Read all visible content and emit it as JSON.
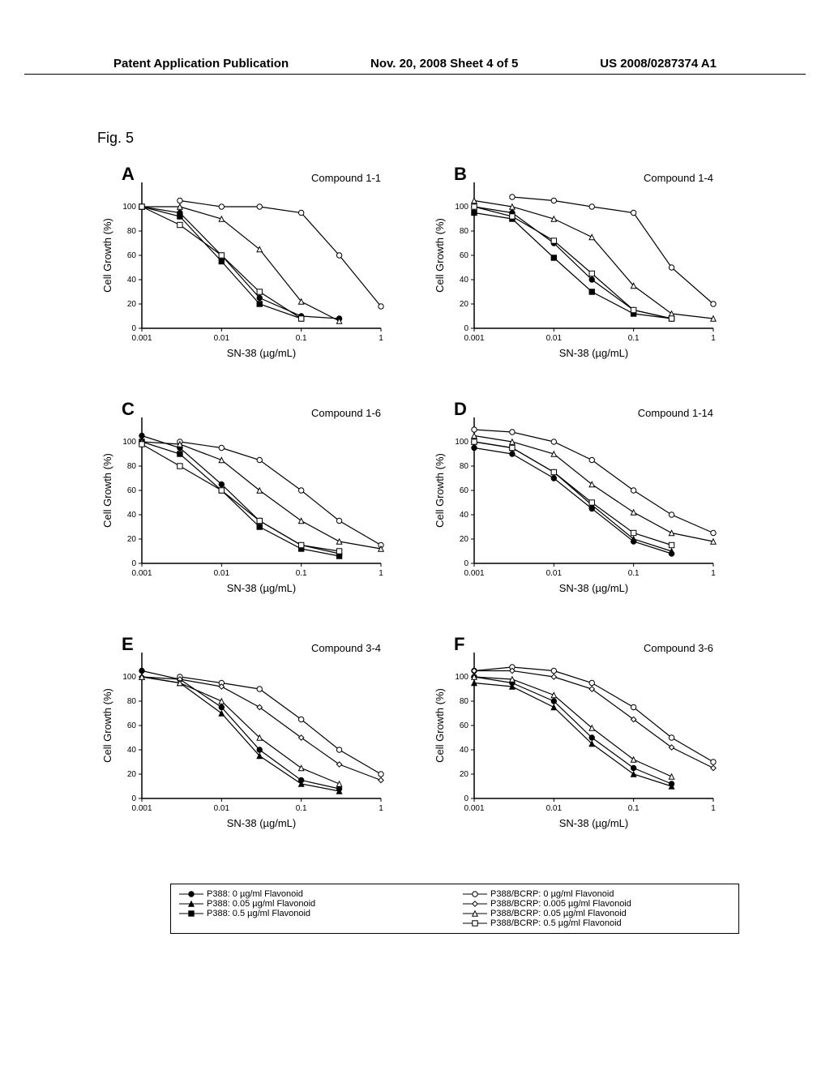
{
  "header": {
    "left": "Patent Application Publication",
    "center": "Nov. 20, 2008  Sheet 4 of 5",
    "right": "US 2008/0287374 A1"
  },
  "figure_label": "Fig. 5",
  "axis": {
    "xlabel": "SN-38 (µg/mL)",
    "ylabel": "Cell Growth (%)",
    "xticks": [
      "0.001",
      "0.01",
      "0.1",
      "1"
    ],
    "xtick_vals": [
      0.001,
      0.01,
      0.1,
      1
    ],
    "yticks": [
      0,
      20,
      40,
      60,
      80,
      100
    ],
    "ylim": [
      0,
      120
    ],
    "label_fontsize": 13,
    "tick_fontsize": 10,
    "background_color": "#ffffff",
    "axis_color": "#000000",
    "line_width": 1.2
  },
  "series_style": {
    "p388_0": {
      "marker": "circle",
      "filled": true,
      "label": "P388: 0 µg/ml Flavonoid"
    },
    "p388_005": {
      "marker": "triangle",
      "filled": true,
      "label": "P388: 0.05 µg/ml Flavonoid"
    },
    "p388_05": {
      "marker": "square",
      "filled": true,
      "label": "P388: 0.5 µg/ml Flavonoid"
    },
    "bcrp_0": {
      "marker": "circle",
      "filled": false,
      "label": "P388/BCRP: 0 µg/ml Flavonoid"
    },
    "bcrp_0005": {
      "marker": "diamond",
      "filled": false,
      "label": "P388/BCRP: 0.005 µg/ml Flavonoid"
    },
    "bcrp_005": {
      "marker": "triangle",
      "filled": false,
      "label": "P388/BCRP: 0.05 µg/ml Flavonoid"
    },
    "bcrp_05": {
      "marker": "square",
      "filled": false,
      "label": "P388/BCRP: 0.5 µg/ml Flavonoid"
    }
  },
  "panels": [
    {
      "letter": "A",
      "title": "Compound 1-1",
      "series": {
        "p388_0": {
          "x": [
            0.001,
            0.003,
            0.01,
            0.03,
            0.1,
            0.3
          ],
          "y": [
            100,
            95,
            60,
            25,
            10,
            8
          ]
        },
        "p388_05": {
          "x": [
            0.001,
            0.003,
            0.01,
            0.03,
            0.1
          ],
          "y": [
            100,
            92,
            55,
            20,
            8
          ]
        },
        "bcrp_0": {
          "x": [
            0.003,
            0.01,
            0.03,
            0.1,
            0.3,
            1
          ],
          "y": [
            105,
            100,
            100,
            95,
            60,
            18
          ]
        },
        "bcrp_005": {
          "x": [
            0.001,
            0.003,
            0.01,
            0.03,
            0.1,
            0.3
          ],
          "y": [
            100,
            100,
            90,
            65,
            22,
            6
          ]
        },
        "bcrp_05": {
          "x": [
            0.001,
            0.003,
            0.01,
            0.03,
            0.1
          ],
          "y": [
            100,
            85,
            60,
            30,
            8
          ]
        }
      }
    },
    {
      "letter": "B",
      "title": "Compound 1-4",
      "series": {
        "p388_0": {
          "x": [
            0.001,
            0.003,
            0.01,
            0.03,
            0.1,
            0.3
          ],
          "y": [
            100,
            95,
            70,
            40,
            15,
            8
          ]
        },
        "p388_05": {
          "x": [
            0.001,
            0.003,
            0.01,
            0.03,
            0.1,
            0.3
          ],
          "y": [
            95,
            90,
            58,
            30,
            12,
            8
          ]
        },
        "bcrp_0": {
          "x": [
            0.003,
            0.01,
            0.03,
            0.1,
            0.3,
            1
          ],
          "y": [
            108,
            105,
            100,
            95,
            50,
            20
          ]
        },
        "bcrp_005": {
          "x": [
            0.001,
            0.003,
            0.01,
            0.03,
            0.1,
            0.3,
            1
          ],
          "y": [
            105,
            100,
            90,
            75,
            35,
            12,
            8
          ]
        },
        "bcrp_05": {
          "x": [
            0.001,
            0.003,
            0.01,
            0.03,
            0.1,
            0.3
          ],
          "y": [
            100,
            92,
            72,
            45,
            15,
            8
          ]
        }
      }
    },
    {
      "letter": "C",
      "title": "Compound 1-6",
      "series": {
        "p388_0": {
          "x": [
            0.001,
            0.003,
            0.01,
            0.03,
            0.1,
            0.3
          ],
          "y": [
            105,
            95,
            65,
            35,
            15,
            8
          ]
        },
        "p388_05": {
          "x": [
            0.001,
            0.003,
            0.01,
            0.03,
            0.1,
            0.3
          ],
          "y": [
            100,
            90,
            60,
            30,
            12,
            6
          ]
        },
        "bcrp_0": {
          "x": [
            0.003,
            0.01,
            0.03,
            0.1,
            0.3,
            1
          ],
          "y": [
            100,
            95,
            85,
            60,
            35,
            15
          ]
        },
        "bcrp_005": {
          "x": [
            0.001,
            0.003,
            0.01,
            0.03,
            0.1,
            0.3,
            1
          ],
          "y": [
            100,
            98,
            85,
            60,
            35,
            18,
            12
          ]
        },
        "bcrp_05": {
          "x": [
            0.001,
            0.003,
            0.01,
            0.03,
            0.1,
            0.3
          ],
          "y": [
            98,
            80,
            60,
            35,
            15,
            10
          ]
        }
      }
    },
    {
      "letter": "D",
      "title": "Compound 1-14",
      "series": {
        "p388_0": {
          "x": [
            0.001,
            0.003,
            0.01,
            0.03,
            0.1,
            0.3
          ],
          "y": [
            95,
            90,
            70,
            45,
            18,
            8
          ]
        },
        "p388_005": {
          "x": [
            0.001,
            0.003,
            0.01,
            0.03,
            0.1,
            0.3
          ],
          "y": [
            100,
            95,
            75,
            48,
            20,
            10
          ]
        },
        "bcrp_0": {
          "x": [
            0.001,
            0.003,
            0.01,
            0.03,
            0.1,
            0.3,
            1
          ],
          "y": [
            110,
            108,
            100,
            85,
            60,
            40,
            25
          ]
        },
        "bcrp_005": {
          "x": [
            0.001,
            0.003,
            0.01,
            0.03,
            0.1,
            0.3,
            1
          ],
          "y": [
            105,
            100,
            90,
            65,
            42,
            25,
            18
          ]
        },
        "bcrp_05": {
          "x": [
            0.001,
            0.003,
            0.01,
            0.03,
            0.1,
            0.3
          ],
          "y": [
            100,
            95,
            75,
            50,
            25,
            15
          ]
        }
      }
    },
    {
      "letter": "E",
      "title": "Compound 3-4",
      "series": {
        "p388_0": {
          "x": [
            0.001,
            0.003,
            0.01,
            0.03,
            0.1,
            0.3
          ],
          "y": [
            105,
            98,
            75,
            40,
            15,
            8
          ]
        },
        "p388_005": {
          "x": [
            0.001,
            0.003,
            0.01,
            0.03,
            0.1,
            0.3
          ],
          "y": [
            100,
            95,
            70,
            35,
            12,
            6
          ]
        },
        "bcrp_0": {
          "x": [
            0.003,
            0.01,
            0.03,
            0.1,
            0.3,
            1
          ],
          "y": [
            100,
            95,
            90,
            65,
            40,
            20
          ]
        },
        "bcrp_0005": {
          "x": [
            0.001,
            0.003,
            0.01,
            0.03,
            0.1,
            0.3,
            1
          ],
          "y": [
            100,
            98,
            92,
            75,
            50,
            28,
            15
          ]
        },
        "bcrp_005": {
          "x": [
            0.001,
            0.003,
            0.01,
            0.03,
            0.1,
            0.3
          ],
          "y": [
            100,
            95,
            80,
            50,
            25,
            12
          ]
        }
      }
    },
    {
      "letter": "F",
      "title": "Compound 3-6",
      "series": {
        "p388_0": {
          "x": [
            0.001,
            0.003,
            0.01,
            0.03,
            0.1,
            0.3
          ],
          "y": [
            100,
            95,
            80,
            50,
            25,
            12
          ]
        },
        "p388_005": {
          "x": [
            0.001,
            0.003,
            0.01,
            0.03,
            0.1,
            0.3
          ],
          "y": [
            95,
            92,
            75,
            45,
            20,
            10
          ]
        },
        "bcrp_0": {
          "x": [
            0.001,
            0.003,
            0.01,
            0.03,
            0.1,
            0.3,
            1
          ],
          "y": [
            105,
            108,
            105,
            95,
            75,
            50,
            30
          ]
        },
        "bcrp_0005": {
          "x": [
            0.001,
            0.003,
            0.01,
            0.03,
            0.1,
            0.3,
            1
          ],
          "y": [
            105,
            105,
            100,
            90,
            65,
            42,
            25
          ]
        },
        "bcrp_005": {
          "x": [
            0.001,
            0.003,
            0.01,
            0.03,
            0.1,
            0.3
          ],
          "y": [
            100,
            98,
            85,
            58,
            32,
            18
          ]
        }
      }
    }
  ],
  "legend_order_left": [
    "p388_0",
    "p388_005",
    "p388_05"
  ],
  "legend_order_right": [
    "bcrp_0",
    "bcrp_0005",
    "bcrp_005",
    "bcrp_05"
  ]
}
